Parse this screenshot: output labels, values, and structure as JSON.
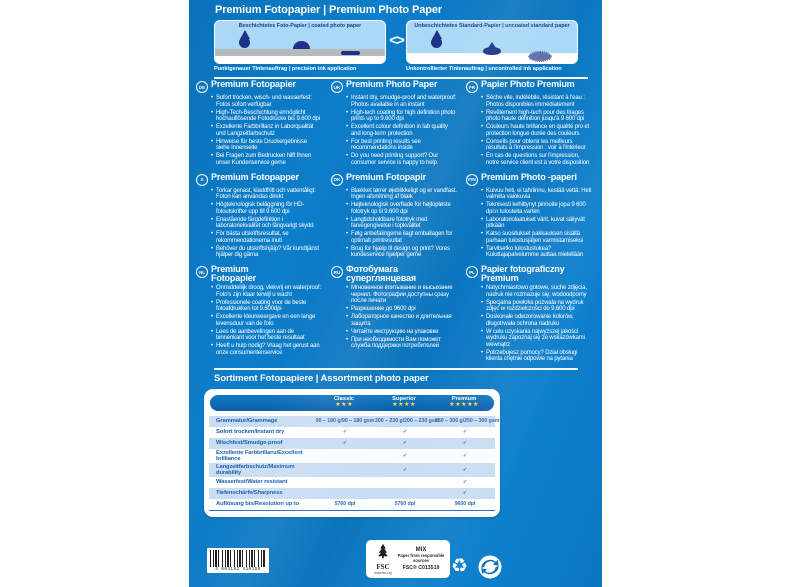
{
  "title": "Premium Fotopapier | Premium Photo Paper",
  "comparison": {
    "separator": "<>",
    "left": {
      "title": "Beschichtetes Foto-Papier | coated photo paper",
      "caption": "Punktgenauer Tintenauftrag | precision ink application"
    },
    "right": {
      "title": "Unbeschichtetes Standard-Papier | uncoated standard paper",
      "caption": "Unkontrollierter Tintenauftrag | uncontrolled ink application"
    }
  },
  "languages": [
    {
      "code": "DE",
      "heading": "Premium Fotopapier",
      "bullets": [
        "Sofort trocken, wisch- und wasserfest: Fotos sofort verfügbar",
        "High-Tech-Beschichtung ermöglicht hochauflösende Fotodrucke bis 9.600 dpi",
        "Exzellente Farbbrillanz in Laborqualität und Langzeitfarbschutz",
        "Hinweise für beste Druckergebnisse siehe Innenseite",
        "Bei Fragen zum Bedrucken hilft Ihnen unser Kundenservice gerne"
      ]
    },
    {
      "code": "UK",
      "heading": "Premium Photo Paper",
      "bullets": [
        "Instant dry, smudge-proof and waterproof: Photos available in an instant",
        "High-tech coating for high definition photo prints up to 9.600 dpi",
        "Excellent colour definition in lab quality and long-term protection",
        "For best printing results see recommendations inside",
        "Do you need printing support? Our consumer service is happy to help"
      ]
    },
    {
      "code": "FR",
      "heading": "Papier Photo Premium",
      "bullets": [
        "Sèche vite, indélébile, résistant à l'eau : Photos disponibles immédiatement",
        "Revêtement high-tech pour des tirages photo haute définition jusqu'à 9 600 dpi",
        "Couleurs haute brillance en qualité pro et protection longue durée des couleurs",
        "Conseils pour obtenir les meilleurs résultats à l'impression : voir à l'intérieur",
        "En cas de questions sur l'impression, notre service client est à votre disposition"
      ]
    },
    {
      "code": "S",
      "heading": "Premium Fotopapper",
      "bullets": [
        "Torkar genast, kladdfritt och vattentåligt: Foton kan användas direkt",
        "Högteknologisk beläggning för HD-fotoutskrifter upp till 9 600 dpi",
        "Enastående färgdefinition i laboratoriekvalitet och långvarigt skydd",
        "För bästa utskriftsresultat, se rekommendationerna inuti",
        "Behöver du utskriftshjälp? Vår kundtjänst hjälper dig gärna"
      ]
    },
    {
      "code": "DK",
      "heading": "Premium Fotopapir",
      "bullets": [
        "Blækket tørrer øjeblikkeligt og er vandfast. Ingen afsmitning af blæk",
        "Højteknologisk overflade for højtopløste fototryk op til 9.600 dpi",
        "Langtidsholdbare fototryk med farvegengivelse i topkvalitet",
        "Følg anbefalingerne ilagt emballagen for optimalt printresultat",
        "Brug for hjælp til design og print? Vores kundeservice hjælper gerne"
      ]
    },
    {
      "code": "FIN",
      "heading": "Premium Photo -paperi",
      "bullets": [
        "Kuivuu heti, ei tahriinnu, kestää vettä: Heti valmiita valokuvia",
        "Teknisesti kehittynyt pinnoite jopa 9 600 dpi:n tulosteita varten",
        "Laboratoriolaatuiset värit, kuvat säilyvät pitkään",
        "Katso suositukset pakkauksen sisältä parhaan tulostusjäljen varmistamiseksi",
        "Tarvitsetko tulostustukea? Kuluttajapalvelumme auttaa mielellään"
      ]
    },
    {
      "code": "NL",
      "heading": "Premium\nFotopapier",
      "bullets": [
        "Onmiddellijk droog, vlekvrij en waterproof: Foto's zijn klaar terwijl u wacht",
        "Professionele coating voor de beste fotoafdrukken tot 9.600dpi",
        "Excellente kleurweergave en een lange levensduur van de foto",
        "Lees de aanbevelingen aan de binnenkant voor het beste resultaat",
        "Heeft u hulp nodig? Vraag het gerust aan onze consumentenservice"
      ]
    },
    {
      "code": "RU",
      "heading": "Фотобумага\nсуперглянцевая",
      "bullets": [
        "Мгновенное впитывание и высыхание чернил. Фотографии доступны сразу после печати",
        "Разрешение до 9600 dpi",
        "Лабораторное качество и длительная защита",
        "Читайте инструкцию на упаковке",
        "При необходимости Вам поможет служба поддержки потребителей"
      ]
    },
    {
      "code": "PL",
      "heading": "Papier fotograficzny\nPremium",
      "bullets": [
        "Natychmiastowo gotowe, suche zdjęcia, nadruk nie rozmazuje się, wodoodporny",
        "Specjalna powłoka pozwala na wydruk zdjęć w rozdzielczości do 9.600 dpi",
        "Doskonałe odwzorowanie kolorów, długotrwała ochrona nadruku",
        "W celu uzyskania najwyższej jakości wydruku zapoznaj się ze wskazówkami wewnątrz",
        "Potrzebujesz pomocy? Dział obsługi klienta chętnie odpowie na pytania"
      ]
    }
  ],
  "assortment": {
    "heading": "Sortiment Fotopapiere | Assortment photo paper",
    "columns": [
      {
        "label": "Classic",
        "stars": "★★★"
      },
      {
        "label": "Superior",
        "stars": "★★★★"
      },
      {
        "label": "Premium",
        "stars": "★★★★★"
      }
    ],
    "rows": [
      {
        "label": "Grammatur/Grammage",
        "values": [
          "90 – 180 g/90 – 180 gsm",
          "200 – 230 g/200 – 230 gsm",
          "250 – 300 g/250 – 300 gsm"
        ]
      },
      {
        "label": "Sofort trocken/Instant dry",
        "values": [
          "✓",
          "✓",
          "✓"
        ]
      },
      {
        "label": "Wischfest/Smudge-proof",
        "values": [
          "✓",
          "✓",
          "✓"
        ]
      },
      {
        "label": "Exzellente Farbbrillanz/Excellent brilliance",
        "values": [
          "",
          "✓",
          "✓"
        ]
      },
      {
        "label": "Langzeitfarbschutz/Maximum durability",
        "values": [
          "",
          "✓",
          "✓"
        ]
      },
      {
        "label": "Wasserfest/Water resistant",
        "values": [
          "",
          "",
          "✓"
        ]
      },
      {
        "label": "Tiefenschärfe/Sharpness",
        "values": [
          "",
          "",
          "✓"
        ]
      },
      {
        "label": "Auflösung bis/Resolution up to",
        "values": [
          "5760 dpi",
          "5760 dpi",
          "9600 dpi"
        ]
      }
    ]
  },
  "footer": {
    "barcode_digits": "4 004182 410158",
    "recycle_symbol": "♻",
    "fsc": {
      "brand": "FSC",
      "url": "www.fsc.org",
      "type": "MIX",
      "desc": "Paper from responsible sources",
      "license": "FSC® C013519"
    }
  },
  "colors": {
    "package_blue": "#0b77c2",
    "panel_light_blue": "#a9d9f6",
    "ink_navy": "#1e3088",
    "table_row_blue": "#c9ddf2",
    "table_header_blue": "#0c6cb4",
    "table_text_blue": "#1c5fae",
    "star_yellow": "#ffd43a",
    "background": "#ffffff"
  }
}
